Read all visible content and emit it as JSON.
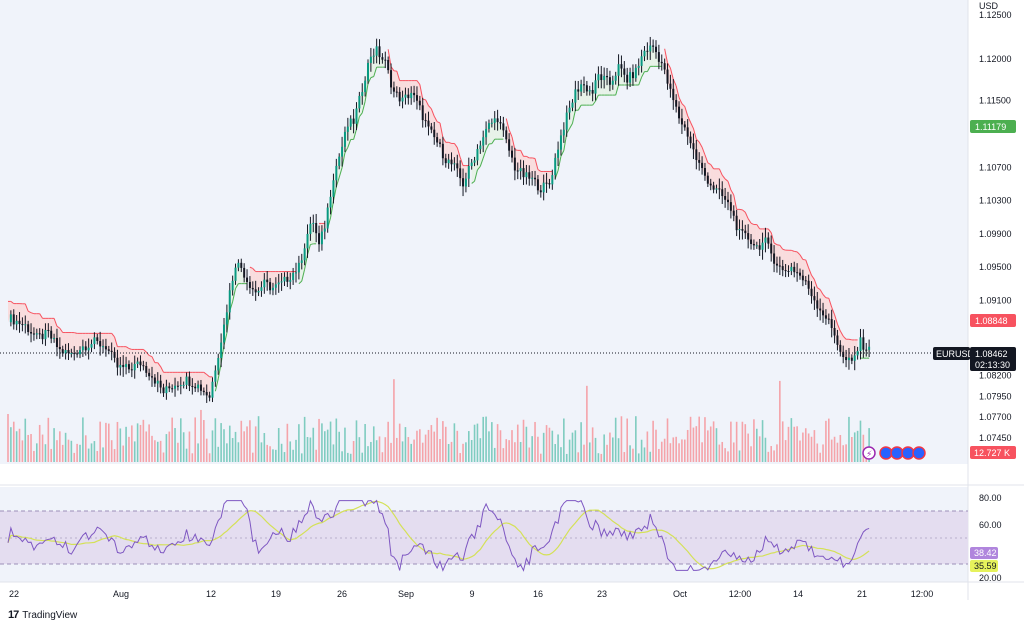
{
  "price_axis": {
    "currency": "USD",
    "ticks": [
      1.12,
      1.115,
      1.107,
      1.103,
      1.099,
      1.095,
      1.091,
      1.082,
      1.0795,
      1.077,
      1.0745
    ],
    "tick_labels": [
      "1.12000",
      "1.11500",
      "1.10700",
      "1.10300",
      "1.09900",
      "1.09500",
      "1.09100",
      "1.08200",
      "1.07950",
      "1.07700",
      "1.07450"
    ],
    "top_partial_label": "1.12500"
  },
  "tags": {
    "supertrend_up_value": "1.11179",
    "supertrend_down_value": "1.08848",
    "symbol": "EURUSD",
    "last_price": "1.08462",
    "countdown": "02:13:30",
    "volume": "12.727 K",
    "rsi_value": "38.42",
    "rsi_ma_value": "35.59"
  },
  "rsi_axis": {
    "tick_labels": [
      "80.00",
      "60.00",
      "20.00"
    ]
  },
  "time_axis": {
    "labels": [
      "22",
      "Aug",
      "12",
      "19",
      "26",
      "Sep",
      "9",
      "16",
      "23",
      "Oct",
      "12:00",
      "14",
      "21",
      "12:00"
    ]
  },
  "branding": {
    "logo_text": "TradingView",
    "logo_mark": "17"
  },
  "colors": {
    "up": "#089981",
    "down": "#f23645",
    "candle_body": "#131722",
    "st_up_line": "#4caf50",
    "st_down_line": "#f7525f",
    "st_up_fill": "#e6f2e6",
    "st_down_fill": "#f9d9d9",
    "rsi_line": "#7e57c2",
    "rsi_ma": "#d4e157",
    "rsi_band": "#e4ddf0",
    "up_tag": "#4caf50",
    "down_tag": "#f7525f",
    "price_tag": "#131722",
    "rsi_tag": "#b085dd",
    "rsi_ma_tag": "#e6f25c"
  },
  "chart_data": {
    "type": "candlestick",
    "symbol": "EURUSD",
    "interval_note": "",
    "ylim": [
      1.0735,
      1.1254
    ],
    "rsi_ylim": [
      20,
      80
    ],
    "rsi_bands": [
      30,
      70
    ],
    "close_path": [
      [
        0,
        1.089
      ],
      [
        6,
        1.088
      ],
      [
        10,
        1.0865
      ],
      [
        14,
        1.087
      ],
      [
        18,
        1.085
      ],
      [
        22,
        1.0845
      ],
      [
        26,
        1.0855
      ],
      [
        30,
        1.086
      ],
      [
        34,
        1.0855
      ],
      [
        38,
        1.083
      ],
      [
        42,
        1.0828
      ],
      [
        46,
        1.0835
      ],
      [
        50,
        1.082
      ],
      [
        54,
        1.08
      ],
      [
        58,
        1.081
      ],
      [
        62,
        1.0815
      ],
      [
        66,
        1.0808
      ],
      [
        70,
        1.0795
      ],
      [
        72,
        1.083
      ],
      [
        75,
        1.088
      ],
      [
        77,
        1.092
      ],
      [
        79,
        1.0955
      ],
      [
        81,
        1.095
      ],
      [
        83,
        1.0935
      ],
      [
        86,
        1.092
      ],
      [
        89,
        1.093
      ],
      [
        92,
        1.0925
      ],
      [
        95,
        1.093
      ],
      [
        98,
        1.094
      ],
      [
        101,
        1.095
      ],
      [
        104,
        1.099
      ],
      [
        106,
        1.1005
      ],
      [
        108,
        1.0975
      ],
      [
        110,
        1.1
      ],
      [
        113,
        1.106
      ],
      [
        116,
        1.1095
      ],
      [
        118,
        1.112
      ],
      [
        120,
        1.1125
      ],
      [
        122,
        1.115
      ],
      [
        124,
        1.118
      ],
      [
        126,
        1.1205
      ],
      [
        128,
        1.121
      ],
      [
        131,
        1.1195
      ],
      [
        134,
        1.116
      ],
      [
        137,
        1.115
      ],
      [
        140,
        1.116
      ],
      [
        143,
        1.114
      ],
      [
        146,
        1.1115
      ],
      [
        149,
        1.11
      ],
      [
        152,
        1.108
      ],
      [
        155,
        1.107
      ],
      [
        158,
        1.105
      ],
      [
        161,
        1.1075
      ],
      [
        164,
        1.11
      ],
      [
        167,
        1.112
      ],
      [
        170,
        1.113
      ],
      [
        173,
        1.11
      ],
      [
        176,
        1.107
      ],
      [
        179,
        1.106
      ],
      [
        182,
        1.1055
      ],
      [
        185,
        1.1045
      ],
      [
        188,
        1.105
      ],
      [
        191,
        1.1095
      ],
      [
        193,
        1.112
      ],
      [
        195,
        1.114
      ],
      [
        197,
        1.116
      ],
      [
        199,
        1.117
      ],
      [
        201,
        1.1165
      ],
      [
        203,
        1.116
      ],
      [
        205,
        1.118
      ],
      [
        207,
        1.1175
      ],
      [
        209,
        1.117
      ],
      [
        212,
        1.119
      ],
      [
        215,
        1.1175
      ],
      [
        218,
        1.1185
      ],
      [
        221,
        1.121
      ],
      [
        224,
        1.1215
      ],
      [
        227,
        1.1195
      ],
      [
        230,
        1.116
      ],
      [
        233,
        1.113
      ],
      [
        236,
        1.111
      ],
      [
        239,
        1.108
      ],
      [
        242,
        1.106
      ],
      [
        245,
        1.1045
      ],
      [
        248,
        1.1035
      ],
      [
        251,
        1.102
      ],
      [
        254,
        1.099
      ],
      [
        257,
        1.0985
      ],
      [
        260,
        1.0975
      ],
      [
        263,
        1.098
      ],
      [
        266,
        1.096
      ],
      [
        269,
        1.0945
      ],
      [
        272,
        1.095
      ],
      [
        275,
        1.094
      ],
      [
        278,
        1.0925
      ],
      [
        281,
        1.0905
      ],
      [
        284,
        1.089
      ],
      [
        287,
        1.087
      ],
      [
        290,
        1.084
      ],
      [
        293,
        1.0835
      ],
      [
        296,
        1.086
      ],
      [
        299,
        1.085
      ]
    ],
    "time_labels": [
      "22",
      "Aug",
      "12",
      "19",
      "26",
      "Sep",
      "9",
      "16",
      "23",
      "Oct",
      "12:00",
      "14",
      "21",
      "12:00"
    ]
  }
}
